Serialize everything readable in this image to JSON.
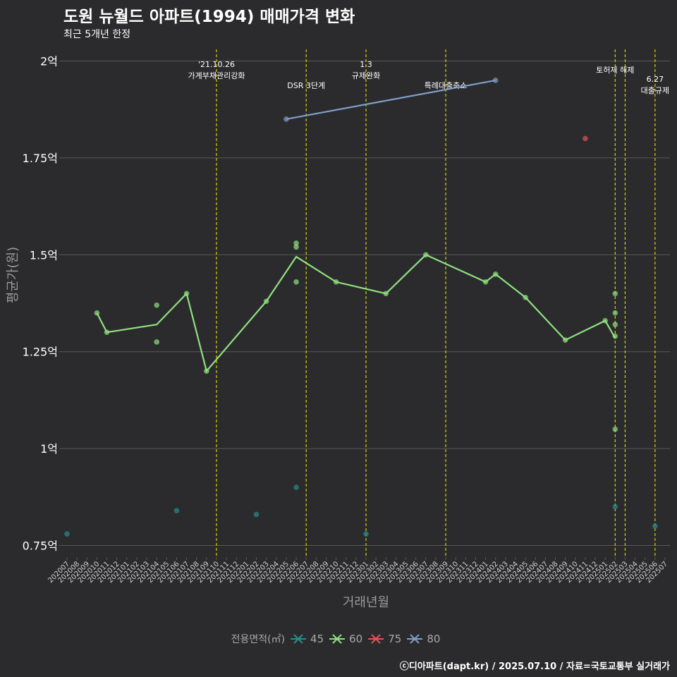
{
  "title": "도원 뉴월드 아파트(1994) 매매가격 변화",
  "subtitle": "최근 5개년 한정",
  "caption": "ⓒ디아파트(dapt.kr) / 2025.07.10 / 자료=국토교통부 실거래가",
  "colors": {
    "background": "#2b2b2d",
    "grid": "#5a5a5a",
    "event_line": "#d4d400",
    "s45": "#2a8c8c",
    "s60": "#90e080",
    "s75": "#e05555",
    "s80": "#7f9ec8"
  },
  "legend": {
    "title": "전용면적(㎡)",
    "items": [
      {
        "label": "45",
        "color": "#2a8c8c"
      },
      {
        "label": "60",
        "color": "#90e080"
      },
      {
        "label": "75",
        "color": "#e05555"
      },
      {
        "label": "80",
        "color": "#7f9ec8"
      }
    ]
  },
  "chart_data": {
    "type": "line",
    "title": "도원 뉴월드 아파트(1994) 매매가격 변화",
    "subtitle": "최근 5개년 한정",
    "xlabel": "거래년월",
    "ylabel": "평균가(원)",
    "ylim": [
      0.72,
      2.03
    ],
    "grid": true,
    "legend_position": "bottom",
    "y_ticks": [
      {
        "value": 0.75,
        "label": "0.75억"
      },
      {
        "value": 1.0,
        "label": "1억"
      },
      {
        "value": 1.25,
        "label": "1.25억"
      },
      {
        "value": 1.5,
        "label": "1.5억"
      },
      {
        "value": 1.75,
        "label": "1.75억"
      },
      {
        "value": 2.0,
        "label": "2억"
      }
    ],
    "x_ticks": [
      "202007",
      "202008",
      "202009",
      "202010",
      "202011",
      "202012",
      "202101",
      "202102",
      "202103",
      "202104",
      "202105",
      "202106",
      "202107",
      "202108",
      "202109",
      "202110",
      "202111",
      "202112",
      "202201",
      "202202",
      "202203",
      "202204",
      "202205",
      "202206",
      "202207",
      "202208",
      "202209",
      "202210",
      "202211",
      "202212",
      "202301",
      "202302",
      "202303",
      "202304",
      "202305",
      "202306",
      "202307",
      "202308",
      "202309",
      "202310",
      "202311",
      "202312",
      "202401",
      "202402",
      "202403",
      "202404",
      "202405",
      "202406",
      "202407",
      "202408",
      "202409",
      "202410",
      "202411",
      "202412",
      "202501",
      "202502",
      "202503",
      "202504",
      "202505",
      "202506",
      "202507"
    ],
    "events": [
      {
        "x": "202110",
        "label_lines": [
          "'21.10.26",
          "가계부채관리강화"
        ]
      },
      {
        "x": "202207",
        "label_lines": [
          "DSR 3단계"
        ]
      },
      {
        "x": "202301",
        "label_lines": [
          "1.3",
          "규제완화"
        ]
      },
      {
        "x": "202309",
        "label_lines": [
          "특례대출축소"
        ]
      },
      {
        "x": "202502",
        "label_lines": [
          "토허제 해제"
        ]
      },
      {
        "x": "202503",
        "label_lines": []
      },
      {
        "x": "202506",
        "label_lines": [
          "6.27",
          "대출규제"
        ]
      }
    ],
    "series": [
      {
        "name": "45",
        "line": [],
        "points": [
          {
            "x": "202007",
            "y": 0.78
          },
          {
            "x": "202106",
            "y": 0.84
          },
          {
            "x": "202202",
            "y": 0.83
          },
          {
            "x": "202206",
            "y": 0.9
          },
          {
            "x": "202301",
            "y": 0.78
          },
          {
            "x": "202502",
            "y": 0.85
          },
          {
            "x": "202506",
            "y": 0.8
          }
        ]
      },
      {
        "name": "60",
        "line": [
          {
            "x": "202010",
            "y": 1.35
          },
          {
            "x": "202011",
            "y": 1.3
          },
          {
            "x": "202104",
            "y": 1.32
          },
          {
            "x": "202107",
            "y": 1.4
          },
          {
            "x": "202109",
            "y": 1.2
          },
          {
            "x": "202203",
            "y": 1.38
          },
          {
            "x": "202206",
            "y": 1.495
          },
          {
            "x": "202210",
            "y": 1.43
          },
          {
            "x": "202303",
            "y": 1.4
          },
          {
            "x": "202307",
            "y": 1.5
          },
          {
            "x": "202401",
            "y": 1.43
          },
          {
            "x": "202402",
            "y": 1.45
          },
          {
            "x": "202405",
            "y": 1.39
          },
          {
            "x": "202409",
            "y": 1.28
          },
          {
            "x": "202501",
            "y": 1.33
          },
          {
            "x": "202502",
            "y": 1.285
          }
        ],
        "points": [
          {
            "x": "202010",
            "y": 1.35
          },
          {
            "x": "202011",
            "y": 1.3
          },
          {
            "x": "202104",
            "y": 1.37
          },
          {
            "x": "202104",
            "y": 1.275
          },
          {
            "x": "202107",
            "y": 1.4
          },
          {
            "x": "202109",
            "y": 1.2
          },
          {
            "x": "202203",
            "y": 1.38
          },
          {
            "x": "202206",
            "y": 1.53
          },
          {
            "x": "202206",
            "y": 1.52
          },
          {
            "x": "202206",
            "y": 1.43
          },
          {
            "x": "202210",
            "y": 1.43
          },
          {
            "x": "202303",
            "y": 1.4
          },
          {
            "x": "202307",
            "y": 1.5
          },
          {
            "x": "202401",
            "y": 1.43
          },
          {
            "x": "202402",
            "y": 1.45
          },
          {
            "x": "202405",
            "y": 1.39
          },
          {
            "x": "202409",
            "y": 1.28
          },
          {
            "x": "202501",
            "y": 1.33
          },
          {
            "x": "202502",
            "y": 1.4
          },
          {
            "x": "202502",
            "y": 1.35
          },
          {
            "x": "202502",
            "y": 1.32
          },
          {
            "x": "202502",
            "y": 1.29
          },
          {
            "x": "202502",
            "y": 1.05
          }
        ]
      },
      {
        "name": "75",
        "line": [],
        "points": [
          {
            "x": "202411",
            "y": 1.8
          }
        ]
      },
      {
        "name": "80",
        "line": [
          {
            "x": "202205",
            "y": 1.85
          },
          {
            "x": "202402",
            "y": 1.95
          }
        ],
        "points": [
          {
            "x": "202205",
            "y": 1.85
          },
          {
            "x": "202402",
            "y": 1.95
          }
        ]
      }
    ]
  }
}
